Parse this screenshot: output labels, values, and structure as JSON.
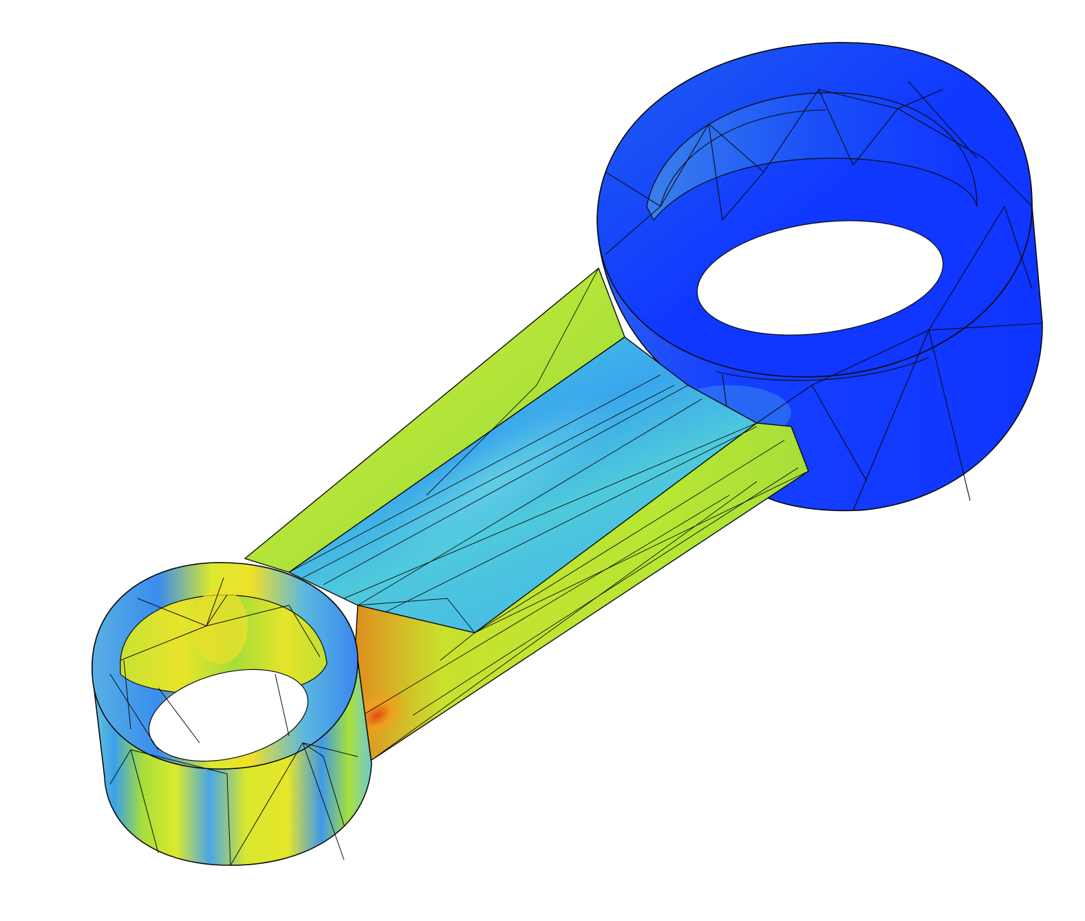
{
  "scene": {
    "subject": "connecting-rod",
    "background_color": "#ffffff",
    "mesh_line_color": "#0a0a0a",
    "colormap": [
      "#1034ff",
      "#2f74f0",
      "#46c4e2",
      "#a8e23a",
      "#e6e62a",
      "#f0a020",
      "#e05010"
    ]
  }
}
